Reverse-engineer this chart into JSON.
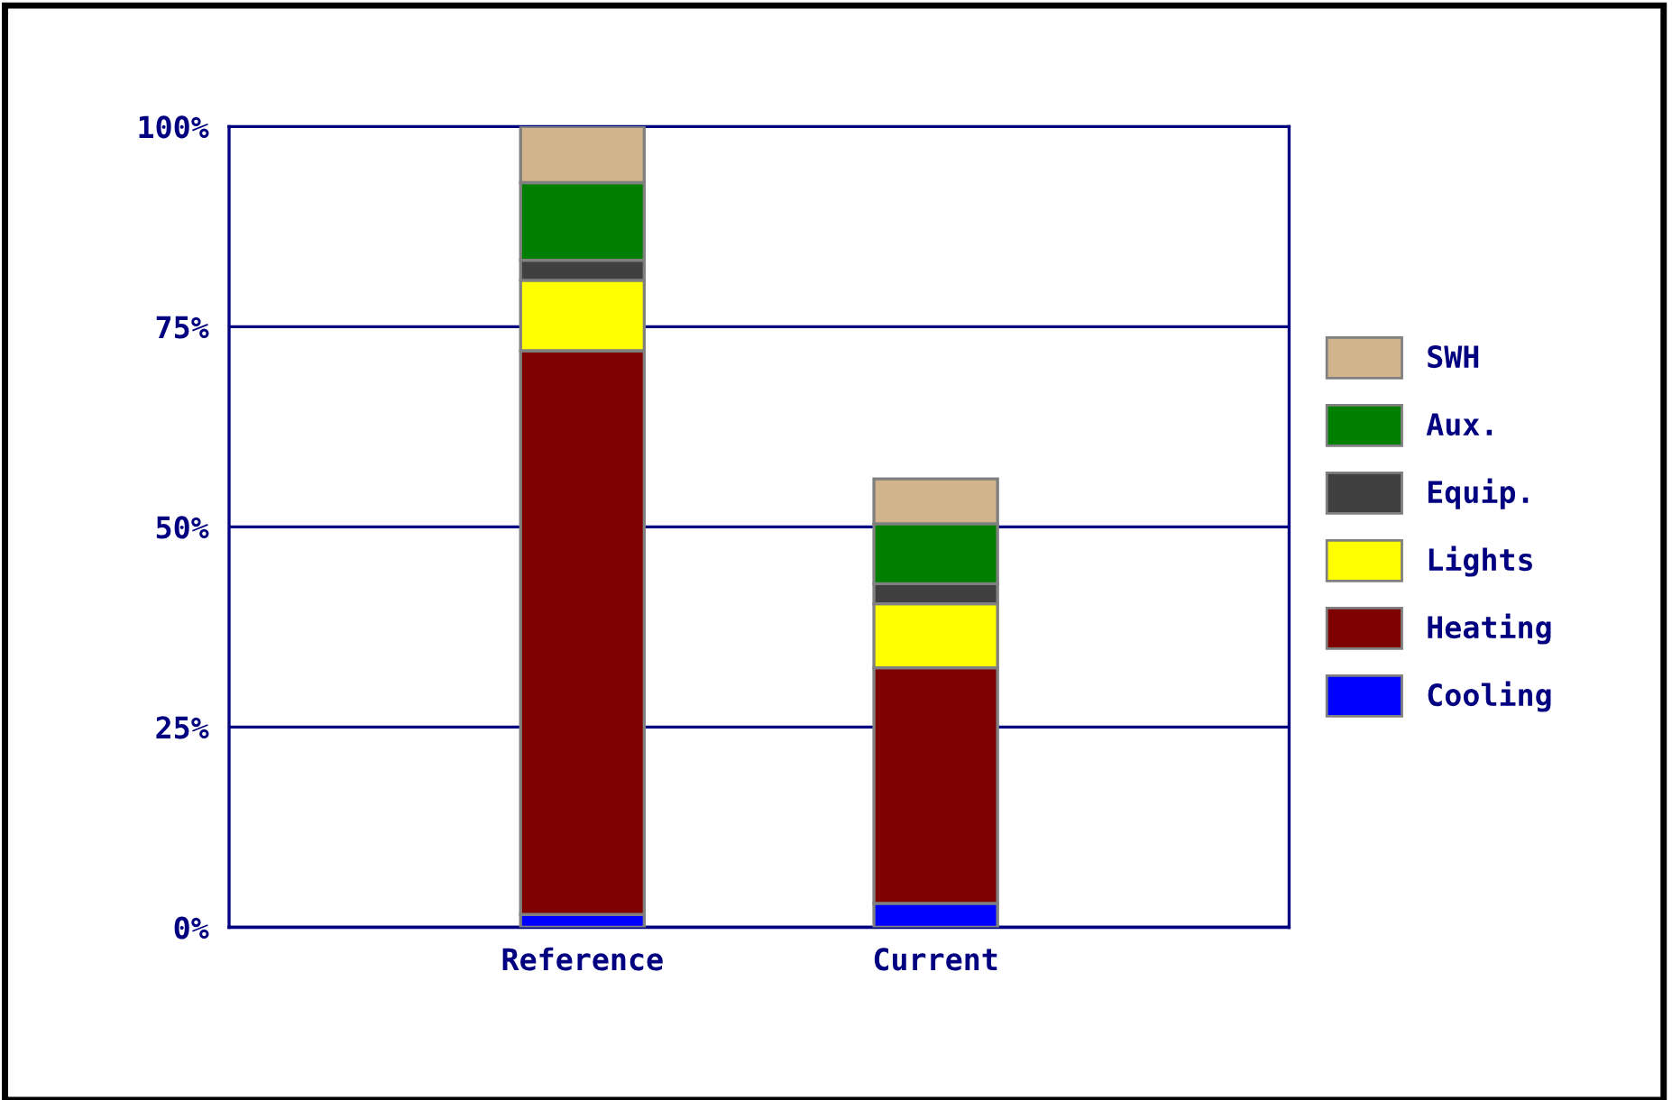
{
  "chart_data": {
    "type": "bar",
    "stacked": true,
    "categories": [
      "Reference",
      "Current"
    ],
    "series": [
      {
        "name": "Cooling",
        "color": "#0000ff",
        "values": [
          1.6,
          3.0
        ]
      },
      {
        "name": "Heating",
        "color": "#7f0000",
        "values": [
          70.4,
          29.4
        ]
      },
      {
        "name": "Lights",
        "color": "#ffff00",
        "values": [
          8.8,
          8.0
        ]
      },
      {
        "name": "Equip.",
        "color": "#404040",
        "values": [
          2.5,
          2.5
        ]
      },
      {
        "name": "Aux.",
        "color": "#007f00",
        "values": [
          9.7,
          7.5
        ]
      },
      {
        "name": "SWH",
        "color": "#d2b48c",
        "values": [
          7.0,
          5.6
        ]
      }
    ],
    "ylim": [
      0,
      100
    ],
    "yticks": [
      {
        "value": 0,
        "label": "0%"
      },
      {
        "value": 25,
        "label": "25%"
      },
      {
        "value": 50,
        "label": "50%"
      },
      {
        "value": 75,
        "label": "75%"
      },
      {
        "value": 100,
        "label": "100%"
      }
    ],
    "grid": "y",
    "legend": "right"
  }
}
